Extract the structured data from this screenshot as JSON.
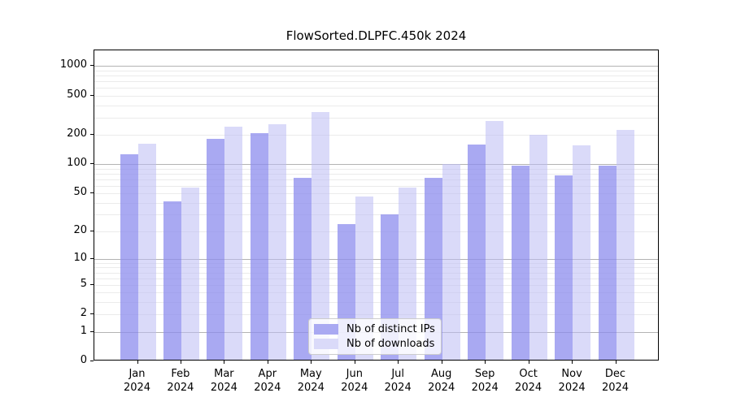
{
  "chart_data": {
    "type": "bar",
    "title": "FlowSorted.DLPFC.450k 2024",
    "x_categories": [
      "Jan",
      "Feb",
      "Mar",
      "Apr",
      "May",
      "Jun",
      "Jul",
      "Aug",
      "Sep",
      "Oct",
      "Nov",
      "Dec"
    ],
    "x_year_suffix": "2024",
    "series": [
      {
        "key": "distinct-ips",
        "name": "Nb of distinct IPs",
        "bar_color": "rgba(140,140,237,0.75)",
        "legend_color": "#a9a9f2",
        "values": [
          125,
          41,
          183,
          207,
          72,
          24,
          30,
          73,
          159,
          97,
          77,
          97
        ]
      },
      {
        "key": "downloads",
        "name": "Nb of downloads",
        "bar_color": "rgba(188,188,244,0.55)",
        "legend_color": "#dadaf9",
        "values": [
          163,
          57,
          243,
          258,
          340,
          46,
          57,
          100,
          276,
          200,
          155,
          223
        ]
      }
    ],
    "yscale": "log1p",
    "yticks": [
      0,
      1,
      2,
      5,
      10,
      20,
      50,
      100,
      200,
      500,
      1000
    ],
    "ylim": [
      0,
      1445
    ],
    "grid": true,
    "legend_position": "inside-bottom-center",
    "axis_color": "#000000",
    "major_grid_color": "#b3b3b3",
    "minor_grid_color": "#ebebeb"
  }
}
